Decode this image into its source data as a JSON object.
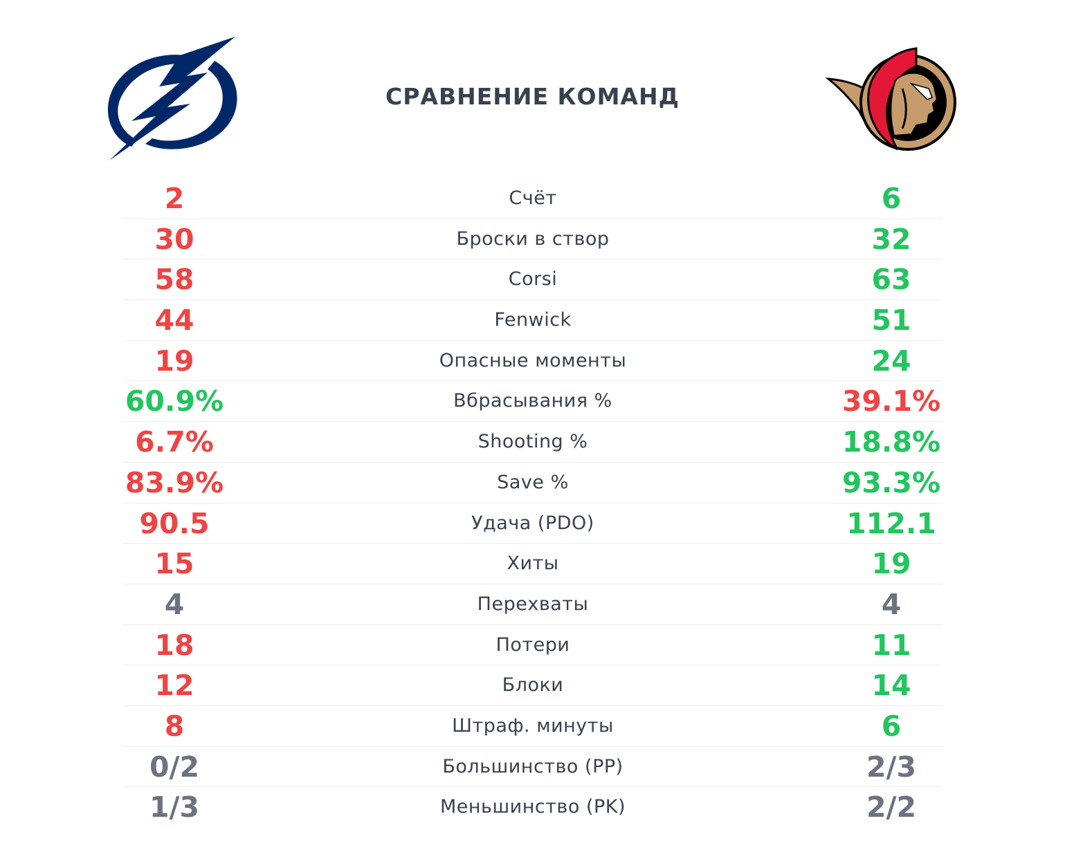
{
  "header": {
    "title": "СРАВНЕНИЕ КОМАНД",
    "left_logo": "tampa-bay-lightning-logo",
    "right_logo": "ottawa-senators-logo"
  },
  "colors": {
    "better": "#22c55e",
    "worse": "#ef4444",
    "equal": "#6b7280",
    "label": "#374151",
    "lightning_navy": "#002868",
    "senators_red": "#e31837",
    "senators_gold": "#c69c6d"
  },
  "stats": [
    {
      "label": "Счёт",
      "left": "2",
      "right": "6",
      "left_status": "worse",
      "right_status": "better"
    },
    {
      "label": "Броски в створ",
      "left": "30",
      "right": "32",
      "left_status": "worse",
      "right_status": "better"
    },
    {
      "label": "Corsi",
      "left": "58",
      "right": "63",
      "left_status": "worse",
      "right_status": "better"
    },
    {
      "label": "Fenwick",
      "left": "44",
      "right": "51",
      "left_status": "worse",
      "right_status": "better"
    },
    {
      "label": "Опасные моменты",
      "left": "19",
      "right": "24",
      "left_status": "worse",
      "right_status": "better"
    },
    {
      "label": "Вбрасывания %",
      "left": "60.9%",
      "right": "39.1%",
      "left_status": "better",
      "right_status": "worse"
    },
    {
      "label": "Shooting %",
      "left": "6.7%",
      "right": "18.8%",
      "left_status": "worse",
      "right_status": "better"
    },
    {
      "label": "Save %",
      "left": "83.9%",
      "right": "93.3%",
      "left_status": "worse",
      "right_status": "better"
    },
    {
      "label": "Удача (PDO)",
      "left": "90.5",
      "right": "112.1",
      "left_status": "worse",
      "right_status": "better"
    },
    {
      "label": "Хиты",
      "left": "15",
      "right": "19",
      "left_status": "worse",
      "right_status": "better"
    },
    {
      "label": "Перехваты",
      "left": "4",
      "right": "4",
      "left_status": "equal",
      "right_status": "equal"
    },
    {
      "label": "Потери",
      "left": "18",
      "right": "11",
      "left_status": "worse",
      "right_status": "better"
    },
    {
      "label": "Блоки",
      "left": "12",
      "right": "14",
      "left_status": "worse",
      "right_status": "better"
    },
    {
      "label": "Штраф. минуты",
      "left": "8",
      "right": "6",
      "left_status": "worse",
      "right_status": "better"
    },
    {
      "label": "Большинство (PP)",
      "left": "0/2",
      "right": "2/3",
      "left_status": "equal",
      "right_status": "equal"
    },
    {
      "label": "Меньшинство (PK)",
      "left": "1/3",
      "right": "2/2",
      "left_status": "equal",
      "right_status": "equal"
    }
  ]
}
